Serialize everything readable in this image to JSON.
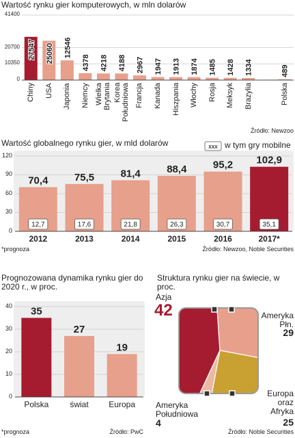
{
  "chart_data": [
    {
      "type": "bar",
      "title": "Wartość rynku gier komputerowych, w mln dolarów",
      "categories": [
        "Chiny",
        "USA",
        "Japonia",
        "Niemcy",
        "Wielka Brytania",
        "Korea Południowa",
        "Francja",
        "Kanada",
        "Hiszpania",
        "Włochy",
        "Rosja",
        "Meksyk",
        "Brazylia",
        "Polska"
      ],
      "values": [
        27547,
        25060,
        12546,
        4378,
        4218,
        4188,
        2967,
        1947,
        1913,
        1874,
        1485,
        1428,
        1334,
        489
      ],
      "colors": [
        "#a51c30",
        "#e7a08b",
        "#e7a08b",
        "#e7a08b",
        "#e7a08b",
        "#e7a08b",
        "#e7a08b",
        "#e7a08b",
        "#e7a08b",
        "#e7a08b",
        "#e7a08b",
        "#e7a08b",
        "#e7a08b",
        "#e7a08b"
      ],
      "ylim": [
        0,
        41400
      ],
      "yticks": [
        0,
        10350,
        20700,
        41400
      ],
      "grid": true,
      "source": "Źródło: Newzoo"
    },
    {
      "type": "bar",
      "title": "Wartość globalnego rynku gier, w mld dolarów",
      "categories": [
        "2012",
        "2013",
        "2014",
        "2015",
        "2016",
        "2017*"
      ],
      "series": [
        {
          "values": [
            70.4,
            75.5,
            81.4,
            88.4,
            95.2,
            102.9
          ],
          "value_labels": [
            "70,4",
            "75,5",
            "81,4",
            "88,4",
            "95,2",
            "102,9"
          ],
          "colors": [
            "#e7a08b",
            "#e7a08b",
            "#e7a08b",
            "#e7a08b",
            "#e7a08b",
            "#a51c30"
          ]
        },
        {
          "name": "w tym gry mobilne",
          "legend_sample": "xxx",
          "values": [
            12.7,
            17.6,
            21.8,
            26.3,
            30.7,
            35.1
          ],
          "value_labels": [
            "12,7",
            "17,6",
            "21,8",
            "26,3",
            "30,7",
            "35,1"
          ]
        }
      ],
      "ylim": [
        0,
        120
      ],
      "yticks": [
        0,
        30,
        60,
        90,
        120
      ],
      "grid": true,
      "note": "*prognoza",
      "source": "Źródło: Newzoo, Noble Securities"
    },
    {
      "type": "bar",
      "title": "Prognozowana dynamika rynku gier do 2020 r., w proc.",
      "categories": [
        "Polska",
        "świat",
        "Europa"
      ],
      "values": [
        35,
        27,
        19
      ],
      "colors": [
        "#a51c30",
        "#e7a08b",
        "#e7a08b"
      ],
      "ylim": [
        0,
        40
      ],
      "yticks": [
        0,
        10,
        20,
        30,
        40
      ],
      "grid": true,
      "note": "*prognoza",
      "source": "Źródło: PwC"
    },
    {
      "type": "pie",
      "title": "Struktura rynku gier na świecie, w proc.",
      "categories": [
        "Azja",
        "Ameryka Płn.",
        "Europa oraz Afryka",
        "Ameryka Południowa"
      ],
      "values": [
        42,
        29,
        25,
        4
      ],
      "colors": [
        "#a51c30",
        "#e7a08b",
        "#c9a032",
        "#ebb8a3"
      ],
      "source": "Źródło: Noble Securities"
    }
  ]
}
